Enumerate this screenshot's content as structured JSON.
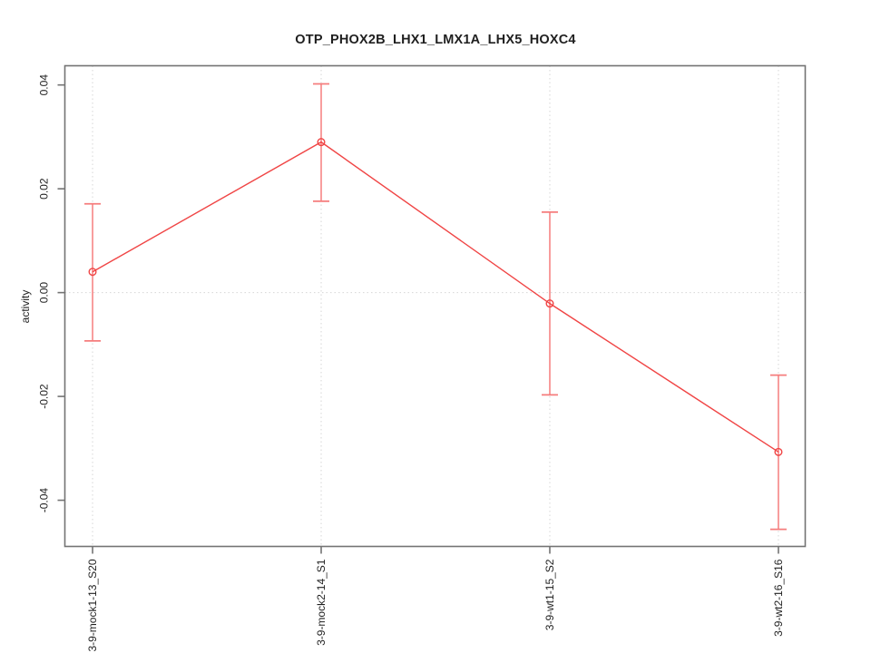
{
  "figure": {
    "title": "OTP_PHOX2B_LHX1_LMX1A_LHX5_HOXC4",
    "y_axis_label": "activity"
  },
  "chart_data": {
    "type": "line",
    "title": "OTP_PHOX2B_LHX1_LMX1A_LHX5_HOXC4",
    "xlabel": "",
    "ylabel": "activity",
    "categories": [
      "3-9-mock1-13_S20",
      "3-9-mock2-14_S1",
      "3-9-wt1-15_S2",
      "3-9-wt2-16_S16"
    ],
    "values": [
      0.004,
      0.029,
      -0.0021,
      -0.0307
    ],
    "error_low": [
      -0.0093,
      0.0176,
      -0.0197,
      -0.0456
    ],
    "error_high": [
      0.0171,
      0.0402,
      0.0155,
      -0.0159
    ],
    "yticks": [
      0.04,
      0.02,
      0,
      -0.02,
      -0.04
    ],
    "ytick_labels": [
      "0.04",
      "0.02",
      "0.00",
      "-0.02",
      "-0.04"
    ],
    "ylim": [
      -0.0489,
      0.0437
    ],
    "legend": "none",
    "marker": "open-circle",
    "grid": {
      "vertical_at_categories": true,
      "horizontal_at_zero": true,
      "style": "dotted"
    },
    "colors": {
      "line": "#f04545",
      "error_bar": "#f57d7d",
      "grid": "#d6d6d6",
      "axis": "#737373",
      "text": "#1f1f1f",
      "background": "#ffffff"
    }
  }
}
